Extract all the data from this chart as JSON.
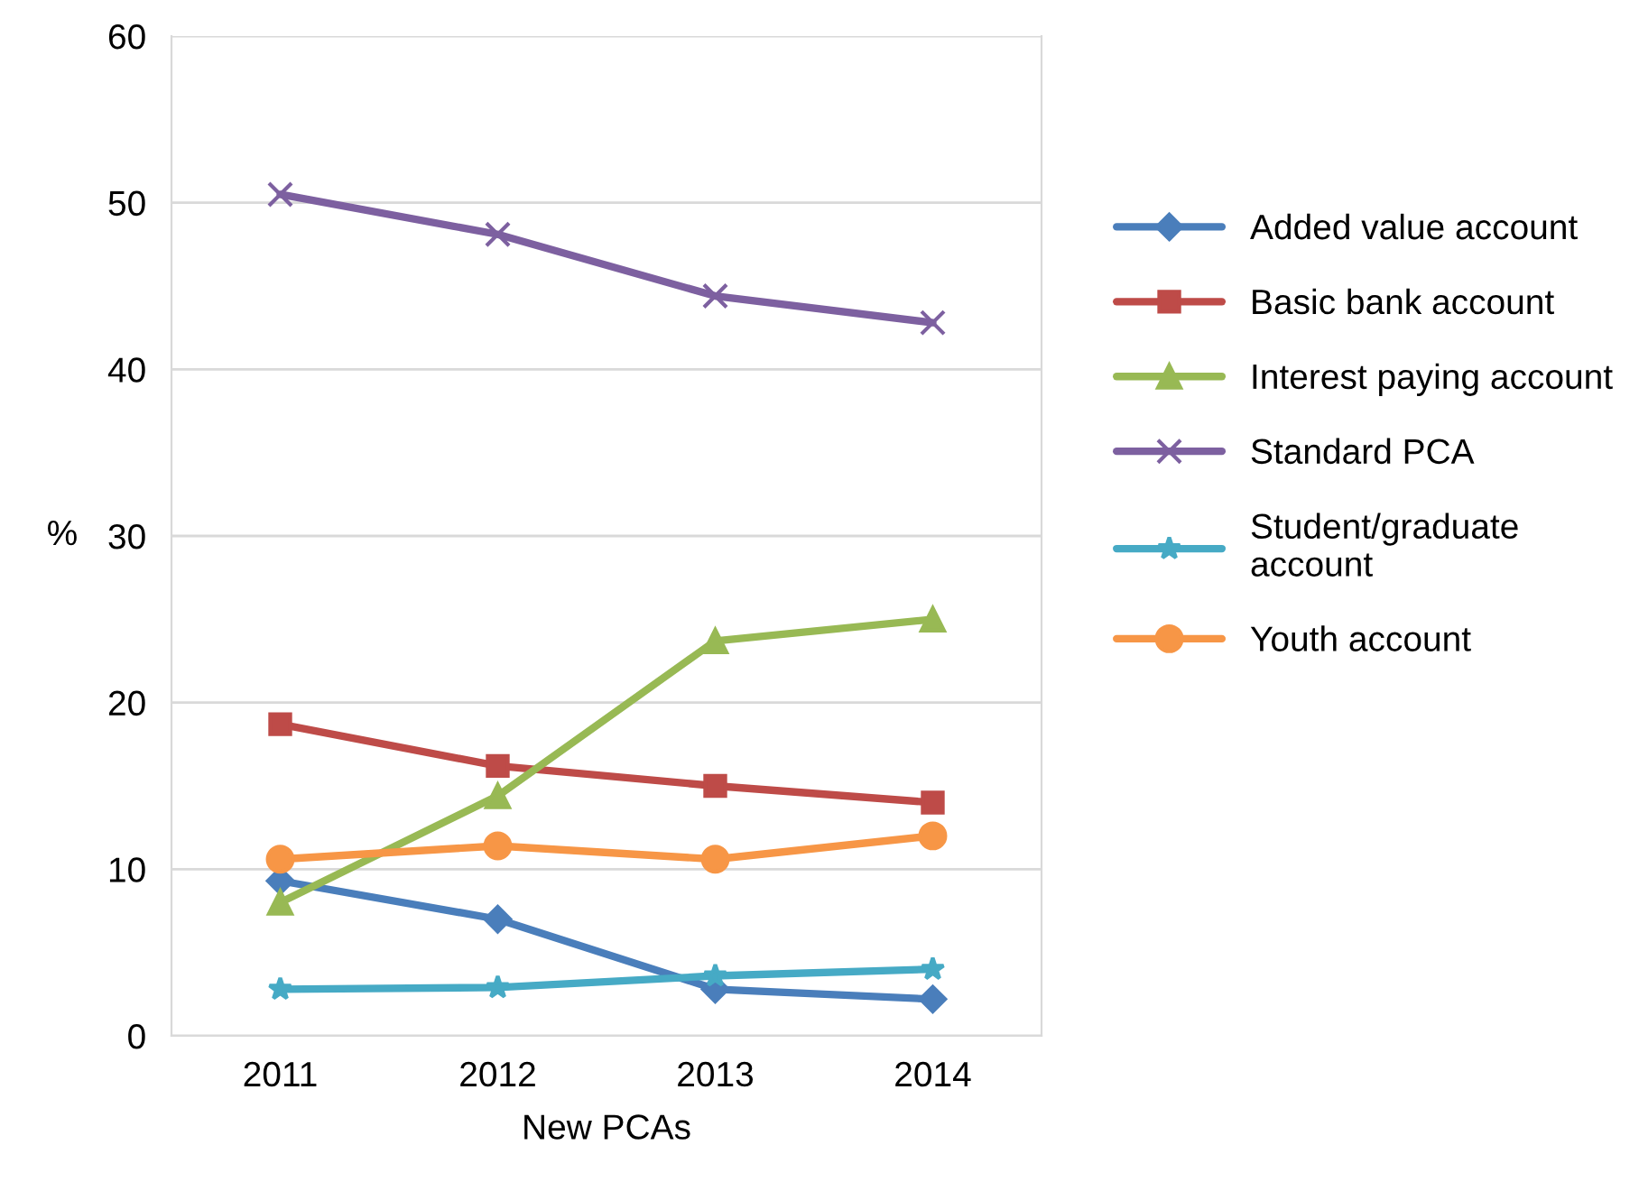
{
  "chart_data": {
    "type": "line",
    "xlabel": "New PCAs",
    "ylabel": "%",
    "categories": [
      "2011",
      "2012",
      "2013",
      "2014"
    ],
    "series": [
      {
        "name": "Added value account",
        "color": "#4a7ebb",
        "marker": "diamond",
        "values": [
          9.3,
          7.0,
          2.8,
          2.2
        ]
      },
      {
        "name": "Basic bank account",
        "color": "#be4b48",
        "marker": "square",
        "values": [
          18.7,
          16.2,
          15.0,
          14.0
        ]
      },
      {
        "name": "Interest paying account",
        "color": "#98b954",
        "marker": "triangle",
        "values": [
          8.0,
          14.4,
          23.7,
          25.0
        ]
      },
      {
        "name": "Standard PCA",
        "color": "#7d60a0",
        "marker": "cross",
        "values": [
          50.5,
          48.1,
          44.4,
          42.8
        ]
      },
      {
        "name": "Student/graduate\naccount",
        "color": "#46aac5",
        "marker": "star",
        "values": [
          2.8,
          2.9,
          3.6,
          4.0
        ]
      },
      {
        "name": "Youth account",
        "color": "#f79646",
        "marker": "circle",
        "values": [
          10.6,
          11.4,
          10.6,
          12.0
        ]
      }
    ],
    "ylim": [
      0,
      60
    ],
    "yticks": [
      0,
      10,
      20,
      30,
      40,
      50,
      60
    ],
    "grid": "y",
    "legend": "right"
  }
}
